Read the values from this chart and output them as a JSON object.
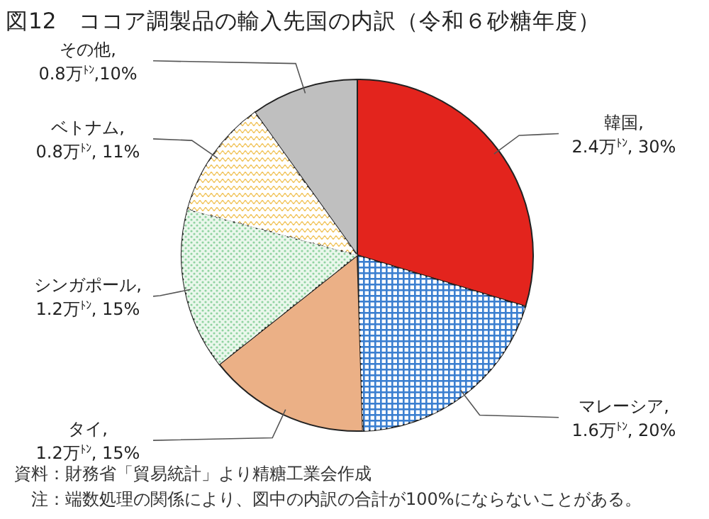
{
  "chart_data": {
    "type": "pie",
    "title": "図12　ココア調製品の輸入先国の内訳（令和６砂糖年度）",
    "categories": [
      "韓国",
      "マレーシア",
      "タイ",
      "シンガポール",
      "ベトナム",
      "その他"
    ],
    "values": [
      30,
      20,
      15,
      15,
      11,
      10
    ],
    "value_labels": [
      ",\n2.4万$^{ﾄﾝ}$, 30%",
      ",\n1.6万$^{ﾄﾝ}$, 20%",
      ",\n1.2万$^{ﾄﾝ}$, 15%",
      ",\n1.2万$^{ﾄﾝ}$, 15%",
      ",\n0.8万$^{ﾄﾝ}$, 11%",
      ",\n0.8万$^{ﾄﾝ}$,10%"
    ],
    "colors": [
      "#e3241d",
      "#3b7fd0",
      "#ebb086",
      "#8fd3a0",
      "#f0c050",
      "#bfbfbf"
    ],
    "annotations": [
      "資料：財務省「貿易統計」より精糖工業会作成",
      "　注：端数処理の関係により、図中の内訳の合計が100%にならないことがある。"
    ]
  }
}
